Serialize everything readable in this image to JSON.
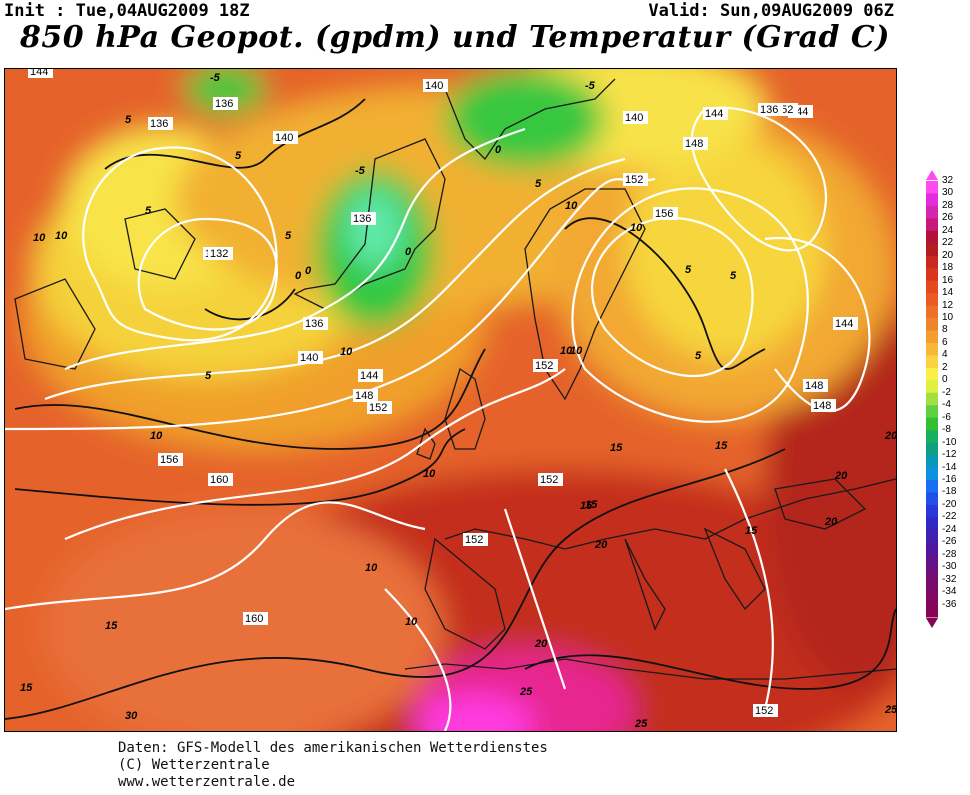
{
  "header": {
    "init": "Init : Tue,04AUG2009 18Z",
    "valid": "Valid: Sun,09AUG2009 06Z",
    "title": "850 hPa Geopot. (gpdm) und Temperatur (Grad C)"
  },
  "map": {
    "geopotential_labels": [
      "144",
      "136",
      "140",
      "136",
      "140",
      "144",
      "148",
      "144",
      "136",
      "144",
      "132",
      "136",
      "140",
      "144",
      "148",
      "152",
      "156",
      "160",
      "160",
      "152",
      "152",
      "152",
      "152",
      "156",
      "152",
      "148",
      "144",
      "140",
      "136",
      "148",
      "152"
    ],
    "temperature_labels": [
      "-5",
      "-5",
      "5",
      "0",
      "5",
      "-5",
      "0",
      "5",
      "5",
      "0",
      "5",
      "10",
      "10",
      "5",
      "5",
      "10",
      "5",
      "0",
      "10",
      "10",
      "10",
      "15",
      "15",
      "15",
      "10",
      "15",
      "10",
      "15",
      "15",
      "10",
      "20",
      "20",
      "20",
      "20",
      "15",
      "20",
      "25",
      "25",
      "30",
      "25",
      "5",
      "10",
      "10"
    ],
    "colors": {
      "warm_dark": "#b22b1a",
      "warm": "#e0642a",
      "orange": "#f09a32",
      "yellow": "#f7e040",
      "green": "#38c840",
      "magenta": "#ee22c8"
    }
  },
  "scale": {
    "labels": [
      "32",
      "30",
      "28",
      "26",
      "24",
      "22",
      "20",
      "18",
      "16",
      "14",
      "12",
      "10",
      "8",
      "6",
      "4",
      "2",
      "0",
      "-2",
      "-4",
      "-6",
      "-8",
      "-10",
      "-12",
      "-14",
      "-16",
      "-18",
      "-20",
      "-22",
      "-24",
      "-26",
      "-28",
      "-30",
      "-32",
      "-34",
      "-36"
    ],
    "colors": [
      "#ff4cf0",
      "#e32ce0",
      "#d228b0",
      "#c8187e",
      "#b4103c",
      "#b01e20",
      "#c8281e",
      "#d9361c",
      "#e34a20",
      "#ea5c24",
      "#ee7028",
      "#f0842c",
      "#f39c30",
      "#f6b838",
      "#f9d440",
      "#fbee48",
      "#e0f040",
      "#a0e040",
      "#60d040",
      "#30c030",
      "#18b060",
      "#10a080",
      "#0898b8",
      "#1090e0",
      "#1870f0",
      "#2050e8",
      "#2838d8",
      "#3028c0",
      "#4020b0",
      "#5018a0",
      "#60128c",
      "#700c78",
      "#780a6a",
      "#800860",
      "#880456"
    ]
  },
  "footer": {
    "line1": "Daten: GFS-Modell des amerikanischen Wetterdienstes",
    "line2": "(C) Wetterzentrale",
    "line3": "www.wetterzentrale.de"
  }
}
